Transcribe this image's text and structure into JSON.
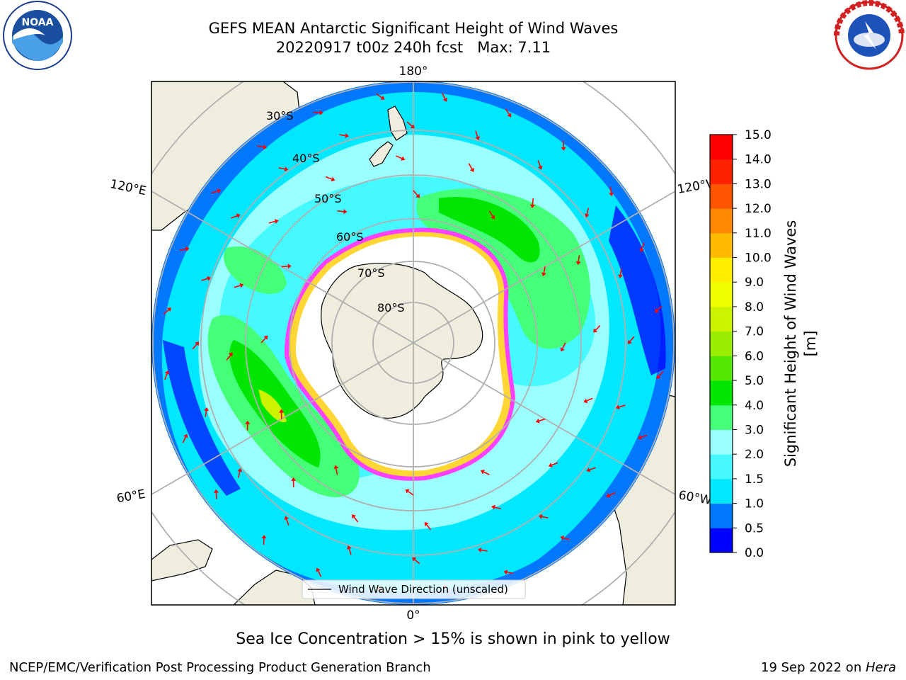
{
  "title": {
    "line1": "GEFS MEAN Antarctic Significant Height of Wind Waves",
    "line2": "20220917 t00z 240h fcst   Max: 7.11"
  },
  "logos": {
    "left": "NOAA",
    "right": "NATIONAL WEATHER SERVICE"
  },
  "map": {
    "projection": "south-polar-stereographic",
    "longitude_labels": {
      "top": "180°",
      "bottom": "0°",
      "upper_left": "120°E",
      "upper_right": "120°W",
      "lower_left": "60°E",
      "lower_right": "60°W"
    },
    "latitude_labels": [
      "30°S",
      "40°S",
      "50°S",
      "60°S",
      "70°S",
      "80°S"
    ],
    "legend": "Wind Wave Direction (unscaled)",
    "arrow_color": "#ff0000",
    "land_color": "#efedde",
    "ice_colors": [
      "#ff40ff",
      "#ffd633"
    ],
    "max_value": 7.11
  },
  "colorbar": {
    "label": "Significant Height of Wind Waves [m]",
    "ticks": [
      "0.0",
      "0.5",
      "1.0",
      "1.5",
      "2.0",
      "3.0",
      "4.0",
      "5.0",
      "6.0",
      "7.0",
      "8.0",
      "9.0",
      "10.0",
      "11.0",
      "12.0",
      "13.0",
      "14.0",
      "15.0"
    ],
    "colors": [
      "#0000ff",
      "#0077ff",
      "#00e8ff",
      "#44f9ff",
      "#9cffff",
      "#44ff77",
      "#00e600",
      "#55e800",
      "#99ee00",
      "#ccf200",
      "#eeff00",
      "#ffee00",
      "#ffbb00",
      "#ff8800",
      "#ff5500",
      "#ff2200",
      "#ff0000"
    ]
  },
  "footnote": "Sea Ice Concentration > 15% is shown in pink to yellow",
  "credits": {
    "left": "NCEP/EMC/Verification Post Processing Product Generation Branch",
    "right_prefix": "19 Sep 2022 on ",
    "right_machine": "Hera"
  }
}
